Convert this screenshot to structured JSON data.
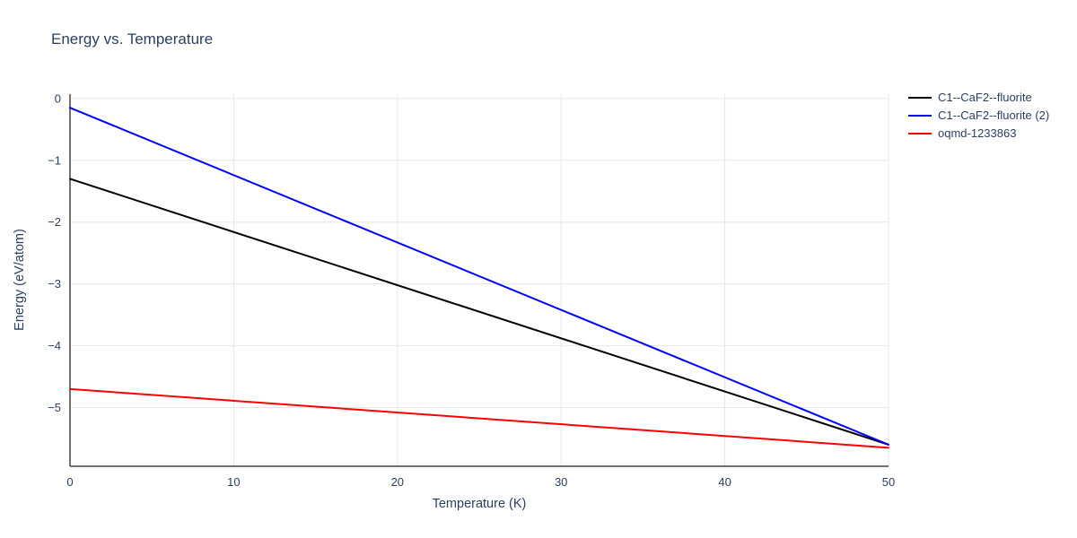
{
  "chart_data": {
    "type": "line",
    "title": "Energy vs. Temperature",
    "xlabel": "Temperature (K)",
    "ylabel": "Energy (eV/atom)",
    "xlim": [
      0,
      50
    ],
    "ylim": [
      -5.95,
      0.07
    ],
    "xticks": [
      0,
      10,
      20,
      30,
      40,
      50
    ],
    "yticks": [
      0,
      -1,
      -2,
      -3,
      -4,
      -5
    ],
    "grid": true,
    "legend_position": "top-right-outside",
    "series": [
      {
        "name": "C1--CaF2--fluorite",
        "color": "#000000",
        "x": [
          0,
          50
        ],
        "y": [
          -1.3,
          -5.6
        ]
      },
      {
        "name": "C1--CaF2--fluorite (2)",
        "color": "#0000ff",
        "x": [
          0,
          50
        ],
        "y": [
          -0.15,
          -5.6
        ]
      },
      {
        "name": "oqmd-1233863",
        "color": "#ff0000",
        "x": [
          0,
          50
        ],
        "y": [
          -4.7,
          -5.65
        ]
      }
    ],
    "colors": {
      "text": "#2a3f5f",
      "grid": "#e6e6e6",
      "axis": "#444444",
      "background": "#ffffff"
    }
  }
}
